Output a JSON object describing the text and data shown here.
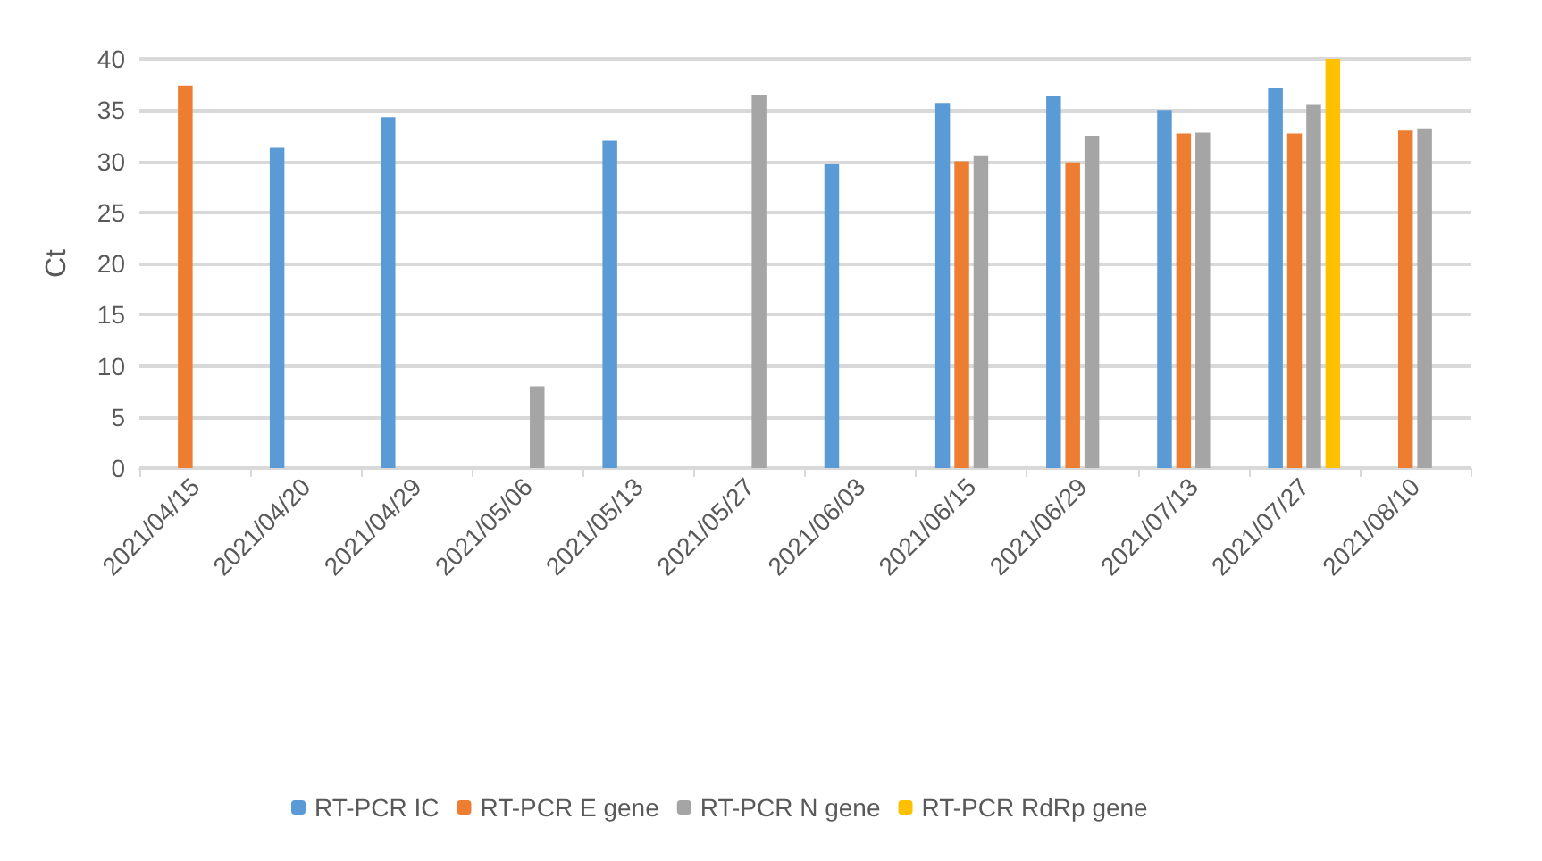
{
  "chart_data": {
    "type": "bar",
    "ylabel": "Ct",
    "categories": [
      "2021/04/15",
      "2021/04/20",
      "2021/04/29",
      "2021/05/06",
      "2021/05/13",
      "2021/05/27",
      "2021/06/03",
      "2021/06/15",
      "2021/06/29",
      "2021/07/13",
      "2021/07/27",
      "2021/08/10"
    ],
    "series": [
      {
        "name": "RT-PCR IC",
        "color": "#5b9bd5",
        "values": [
          null,
          31.3,
          34.3,
          null,
          32.0,
          null,
          29.7,
          35.7,
          36.4,
          35.0,
          37.2,
          null
        ]
      },
      {
        "name": "RT-PCR E gene",
        "color": "#ed7d31",
        "values": [
          37.4,
          null,
          null,
          null,
          null,
          null,
          null,
          30.0,
          29.9,
          32.7,
          32.7,
          33.0
        ]
      },
      {
        "name": "RT-PCR N gene",
        "color": "#a5a5a5",
        "values": [
          null,
          null,
          null,
          8.0,
          null,
          36.5,
          null,
          30.5,
          32.5,
          32.8,
          35.5,
          33.2
        ]
      },
      {
        "name": "RT-PCR RdRp gene",
        "color": "#ffc000",
        "values": [
          null,
          null,
          null,
          null,
          null,
          null,
          null,
          null,
          null,
          null,
          40.0,
          null
        ]
      }
    ],
    "ylim": [
      0,
      40
    ],
    "yticks": [
      0,
      5,
      10,
      15,
      20,
      25,
      30,
      35,
      40
    ],
    "grid": "y",
    "legend": "bottom"
  }
}
